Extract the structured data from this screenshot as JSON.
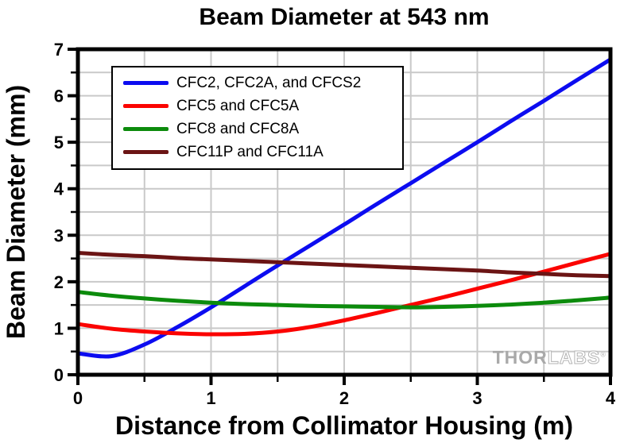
{
  "title": "Beam Diameter at 543 nm",
  "watermark": {
    "part1": "THOR",
    "part2": "LABS",
    "reg": "®"
  },
  "chart_data": {
    "type": "line",
    "title": "Beam Diameter at 543 nm",
    "xlabel": "Distance from Collimator Housing (m)",
    "ylabel": "Beam Diameter (mm)",
    "xlim": [
      0,
      4
    ],
    "ylim": [
      0,
      7
    ],
    "x_major_ticks": [
      0,
      1,
      2,
      3,
      4
    ],
    "y_major_ticks": [
      0,
      1,
      2,
      3,
      4,
      5,
      6,
      7
    ],
    "minor_tick_step": 0.5,
    "grid": true,
    "grid_color": "#c9c9c9",
    "axis_color": "#000000",
    "legend_position": "top-left",
    "x": [
      0,
      0.25,
      0.5,
      0.75,
      1,
      1.25,
      1.5,
      1.75,
      2,
      2.25,
      2.5,
      2.75,
      3,
      3.25,
      3.5,
      3.75,
      4
    ],
    "series": [
      {
        "id": "cfc2",
        "name": "CFC2, CFC2A, and CFCS2",
        "color": "#0c0cf0",
        "values": [
          0.46,
          0.4,
          0.65,
          1.03,
          1.45,
          1.9,
          2.35,
          2.79,
          3.23,
          3.68,
          4.12,
          4.56,
          5.0,
          5.45,
          5.89,
          6.34,
          6.78
        ]
      },
      {
        "id": "cfc5",
        "name": "CFC5 and CFC5A",
        "color": "#fb0300",
        "values": [
          1.09,
          0.99,
          0.93,
          0.89,
          0.87,
          0.88,
          0.93,
          1.03,
          1.17,
          1.33,
          1.5,
          1.67,
          1.85,
          2.03,
          2.22,
          2.41,
          2.6
        ]
      },
      {
        "id": "cfc8",
        "name": "CFC8 and CFC8A",
        "color": "#0c8b0c",
        "values": [
          1.78,
          1.7,
          1.64,
          1.59,
          1.55,
          1.52,
          1.5,
          1.48,
          1.47,
          1.46,
          1.45,
          1.46,
          1.48,
          1.51,
          1.55,
          1.6,
          1.66
        ]
      },
      {
        "id": "cfc11",
        "name": "CFC11P and CFC11A",
        "color": "#6b1414",
        "values": [
          2.62,
          2.58,
          2.55,
          2.51,
          2.48,
          2.45,
          2.42,
          2.39,
          2.36,
          2.33,
          2.3,
          2.27,
          2.24,
          2.2,
          2.17,
          2.14,
          2.12
        ]
      }
    ]
  }
}
